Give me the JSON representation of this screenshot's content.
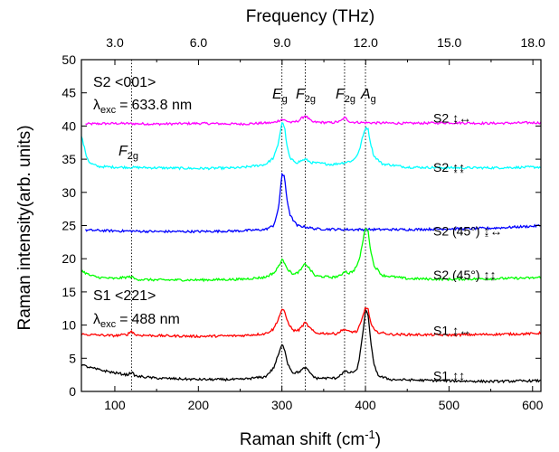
{
  "chart_data": {
    "type": "line",
    "xlabel": "Raman shift (cm-1)",
    "ylabel": "Raman intensity(arb. units)",
    "top_xlabel": "Frequency (THz)",
    "xlim": [
      60,
      610
    ],
    "ylim": [
      0,
      50
    ],
    "x_ticks": [
      100,
      200,
      300,
      400,
      500,
      600
    ],
    "y_ticks": [
      0,
      5,
      10,
      15,
      20,
      25,
      30,
      35,
      40,
      45,
      50
    ],
    "top_ticks_thz": [
      3.0,
      6.0,
      9.0,
      12.0,
      15.0,
      18.0
    ],
    "top_tick_labels": [
      "3.0",
      "6.0",
      "9.0",
      "12.0",
      "15.0",
      "18.0"
    ],
    "vlines": [
      120,
      300,
      328,
      375,
      400
    ],
    "annotations": {
      "s2_header": "S2 <001>",
      "s2_lambda": "633.8 nm",
      "s1_header": "S1 <221>",
      "s1_lambda": "488 nm",
      "lambda_prefix": "λ",
      "lambda_sub": "exc",
      "lambda_eq": "=",
      "peaks": [
        {
          "main": "E",
          "sub": "g"
        },
        {
          "main": "F",
          "sub": "2g"
        },
        {
          "main": "F",
          "sub": "2g"
        },
        {
          "main": "A",
          "sub": "g"
        },
        {
          "main": "F",
          "sub": "2g"
        }
      ]
    },
    "series": [
      {
        "name": "S2 ↨↔",
        "color": "#ff00ff",
        "points": [
          [
            65,
            40.3
          ],
          [
            100,
            40.4
          ],
          [
            150,
            40.3
          ],
          [
            200,
            40.4
          ],
          [
            250,
            40.3
          ],
          [
            290,
            40.5
          ],
          [
            300,
            41.0
          ],
          [
            312,
            40.5
          ],
          [
            320,
            40.8
          ],
          [
            328,
            41.6
          ],
          [
            336,
            40.6
          ],
          [
            360,
            40.5
          ],
          [
            370,
            40.7
          ],
          [
            375,
            41.3
          ],
          [
            382,
            40.6
          ],
          [
            400,
            40.5
          ],
          [
            450,
            40.4
          ],
          [
            500,
            40.5
          ],
          [
            550,
            40.4
          ],
          [
            600,
            40.5
          ],
          [
            610,
            40.5
          ]
        ]
      },
      {
        "name": "S2 ↨↨",
        "color": "#00ffff",
        "points": [
          [
            60,
            38.5
          ],
          [
            63,
            37.0
          ],
          [
            66,
            35.5
          ],
          [
            70,
            34.4
          ],
          [
            80,
            33.9
          ],
          [
            100,
            33.8
          ],
          [
            150,
            33.7
          ],
          [
            200,
            33.6
          ],
          [
            250,
            33.7
          ],
          [
            280,
            34.2
          ],
          [
            290,
            35.2
          ],
          [
            295,
            37.0
          ],
          [
            300,
            40.5
          ],
          [
            303,
            40.0
          ],
          [
            306,
            37.0
          ],
          [
            310,
            35.0
          ],
          [
            318,
            34.5
          ],
          [
            328,
            35.0
          ],
          [
            335,
            34.5
          ],
          [
            360,
            34.2
          ],
          [
            375,
            34.5
          ],
          [
            385,
            34.8
          ],
          [
            392,
            36.0
          ],
          [
            396,
            38.0
          ],
          [
            400,
            39.8
          ],
          [
            403,
            39.6
          ],
          [
            406,
            37.5
          ],
          [
            410,
            35.5
          ],
          [
            420,
            34.3
          ],
          [
            450,
            33.8
          ],
          [
            500,
            33.7
          ],
          [
            550,
            33.7
          ],
          [
            600,
            33.8
          ],
          [
            610,
            33.8
          ]
        ]
      },
      {
        "name": "S2 (45°) ↨↔",
        "color": "#0000ff",
        "points": [
          [
            65,
            24.3
          ],
          [
            100,
            24.2
          ],
          [
            150,
            24.1
          ],
          [
            200,
            24.1
          ],
          [
            250,
            24.2
          ],
          [
            280,
            24.4
          ],
          [
            290,
            25.0
          ],
          [
            296,
            27.5
          ],
          [
            300,
            32.8
          ],
          [
            303,
            32.3
          ],
          [
            306,
            29.0
          ],
          [
            310,
            26.5
          ],
          [
            318,
            25.0
          ],
          [
            328,
            24.8
          ],
          [
            340,
            24.5
          ],
          [
            375,
            24.4
          ],
          [
            400,
            24.4
          ],
          [
            450,
            24.4
          ],
          [
            500,
            24.5
          ],
          [
            550,
            24.6
          ],
          [
            600,
            24.9
          ],
          [
            610,
            25.0
          ]
        ]
      },
      {
        "name": "S2 (45°) ↨↨",
        "color": "#00ff00",
        "points": [
          [
            60,
            18.2
          ],
          [
            70,
            17.5
          ],
          [
            80,
            17.2
          ],
          [
            100,
            17.0
          ],
          [
            120,
            17.3
          ],
          [
            125,
            16.9
          ],
          [
            150,
            16.8
          ],
          [
            200,
            16.8
          ],
          [
            250,
            16.9
          ],
          [
            280,
            17.2
          ],
          [
            292,
            18.0
          ],
          [
            300,
            19.8
          ],
          [
            303,
            19.5
          ],
          [
            308,
            18.2
          ],
          [
            315,
            17.6
          ],
          [
            322,
            18.2
          ],
          [
            328,
            19.3
          ],
          [
            333,
            18.5
          ],
          [
            340,
            17.4
          ],
          [
            360,
            17.2
          ],
          [
            370,
            17.4
          ],
          [
            375,
            18.2
          ],
          [
            380,
            17.8
          ],
          [
            386,
            18.2
          ],
          [
            392,
            19.5
          ],
          [
            396,
            22.0
          ],
          [
            400,
            24.8
          ],
          [
            403,
            24.2
          ],
          [
            406,
            21.5
          ],
          [
            410,
            19.0
          ],
          [
            420,
            17.5
          ],
          [
            450,
            17.0
          ],
          [
            500,
            16.9
          ],
          [
            550,
            17.0
          ],
          [
            600,
            17.1
          ],
          [
            610,
            17.2
          ]
        ]
      },
      {
        "name": "S1 ↨↔",
        "color": "#ff0000",
        "points": [
          [
            60,
            8.6
          ],
          [
            80,
            8.5
          ],
          [
            100,
            8.4
          ],
          [
            115,
            8.6
          ],
          [
            120,
            9.1
          ],
          [
            125,
            8.5
          ],
          [
            150,
            8.4
          ],
          [
            200,
            8.3
          ],
          [
            250,
            8.4
          ],
          [
            280,
            8.7
          ],
          [
            290,
            9.4
          ],
          [
            296,
            11.0
          ],
          [
            300,
            12.4
          ],
          [
            303,
            12.0
          ],
          [
            307,
            10.5
          ],
          [
            313,
            9.2
          ],
          [
            320,
            9.2
          ],
          [
            328,
            10.4
          ],
          [
            333,
            9.6
          ],
          [
            340,
            8.8
          ],
          [
            365,
            8.7
          ],
          [
            375,
            9.4
          ],
          [
            380,
            9.0
          ],
          [
            390,
            9.0
          ],
          [
            395,
            10.5
          ],
          [
            400,
            12.7
          ],
          [
            403,
            12.4
          ],
          [
            407,
            10.0
          ],
          [
            412,
            9.0
          ],
          [
            430,
            8.6
          ],
          [
            500,
            8.5
          ],
          [
            550,
            8.6
          ],
          [
            600,
            8.7
          ],
          [
            610,
            8.8
          ]
        ]
      },
      {
        "name": "S1 ↨↨",
        "color": "#000000",
        "points": [
          [
            60,
            4.0
          ],
          [
            70,
            3.6
          ],
          [
            80,
            3.3
          ],
          [
            100,
            2.8
          ],
          [
            115,
            2.5
          ],
          [
            120,
            2.9
          ],
          [
            125,
            2.3
          ],
          [
            150,
            2.0
          ],
          [
            200,
            1.8
          ],
          [
            250,
            1.8
          ],
          [
            280,
            2.2
          ],
          [
            290,
            3.5
          ],
          [
            296,
            5.6
          ],
          [
            300,
            7.0
          ],
          [
            303,
            6.5
          ],
          [
            307,
            4.2
          ],
          [
            313,
            2.8
          ],
          [
            320,
            2.9
          ],
          [
            328,
            3.6
          ],
          [
            333,
            2.9
          ],
          [
            340,
            2.0
          ],
          [
            365,
            2.0
          ],
          [
            375,
            3.0
          ],
          [
            382,
            2.8
          ],
          [
            390,
            3.2
          ],
          [
            394,
            6.0
          ],
          [
            397,
            9.0
          ],
          [
            400,
            12.3
          ],
          [
            403,
            11.5
          ],
          [
            406,
            8.0
          ],
          [
            410,
            4.0
          ],
          [
            416,
            2.3
          ],
          [
            430,
            1.8
          ],
          [
            460,
            1.7
          ],
          [
            500,
            1.6
          ],
          [
            550,
            1.5
          ],
          [
            600,
            1.6
          ],
          [
            610,
            1.6
          ]
        ]
      }
    ]
  }
}
